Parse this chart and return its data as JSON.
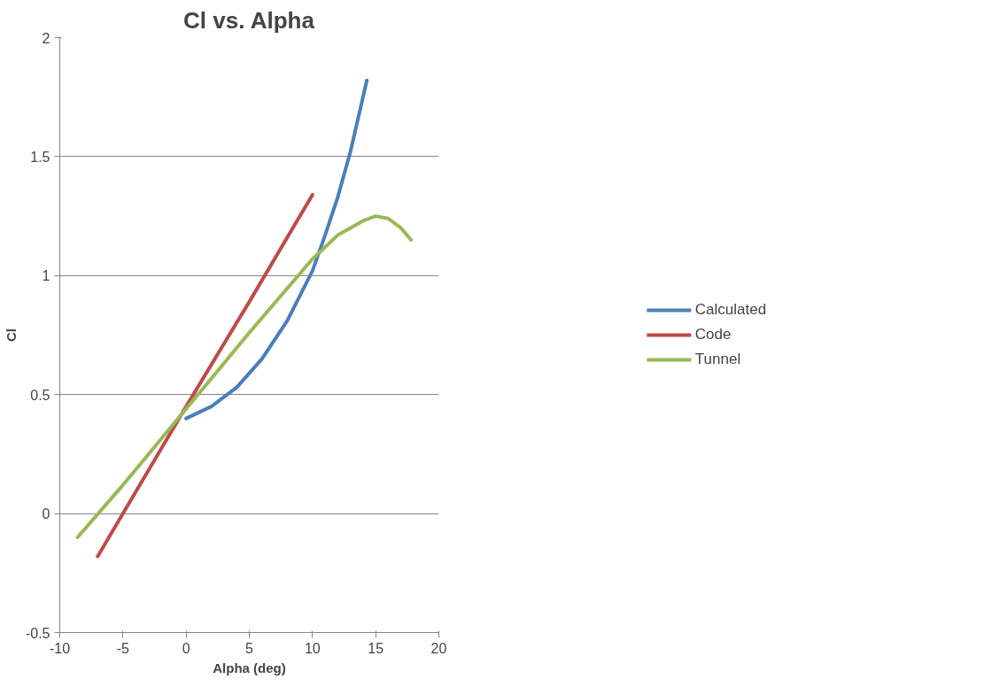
{
  "chart_data": {
    "type": "line",
    "title": "Cl vs. Alpha",
    "xlabel": "Alpha (deg)",
    "ylabel": "Cl",
    "xlim": [
      -10,
      20
    ],
    "xticks": [
      -10,
      -5,
      0,
      5,
      10,
      15,
      20
    ],
    "ylim": [
      -0.5,
      2
    ],
    "yticks": [
      -0.5,
      0,
      0.5,
      1,
      1.5,
      2
    ],
    "grid": "y",
    "legend": "right",
    "line_style": "solid",
    "marker": "none",
    "series": [
      {
        "name": "Calculated",
        "color": "#4a7ebb",
        "x": [
          0,
          2,
          4,
          6,
          8,
          10,
          11,
          12,
          13,
          14.3
        ],
        "values": [
          0.4,
          0.45,
          0.53,
          0.65,
          0.81,
          1.02,
          1.17,
          1.33,
          1.52,
          1.82
        ]
      },
      {
        "name": "Code",
        "color": "#be4b48",
        "x": [
          -7,
          -5,
          0,
          5,
          10
        ],
        "values": [
          -0.18,
          0.0,
          0.45,
          0.89,
          1.34
        ]
      },
      {
        "name": "Tunnel",
        "color": "#98b954",
        "x": [
          -8.6,
          -5,
          0,
          5,
          10,
          12,
          14,
          15,
          16,
          17,
          17.8
        ],
        "values": [
          -0.1,
          0.12,
          0.44,
          0.76,
          1.07,
          1.17,
          1.23,
          1.25,
          1.24,
          1.2,
          1.15
        ]
      }
    ]
  }
}
